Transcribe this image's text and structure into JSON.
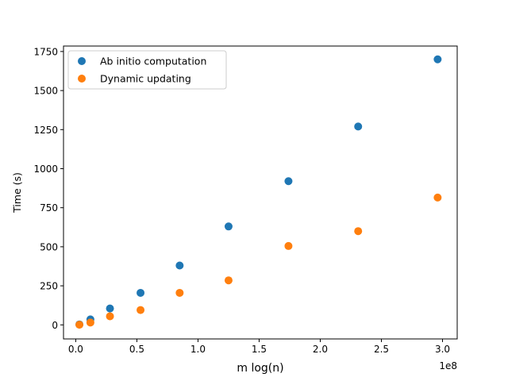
{
  "chart_data": {
    "type": "scatter",
    "title": "",
    "xlabel": "m log(n)",
    "ylabel": "Time (s)",
    "x_offset_label": "1e8",
    "xlim": [
      -0.1,
      3.12
    ],
    "ylim": [
      -90,
      1785
    ],
    "x_ticks": [
      0.0,
      0.5,
      1.0,
      1.5,
      2.0,
      2.5,
      3.0
    ],
    "x_tick_labels": [
      "0.0",
      "0.5",
      "1.0",
      "1.5",
      "2.0",
      "2.5",
      "3.0"
    ],
    "y_ticks": [
      0,
      250,
      500,
      750,
      1000,
      1250,
      1500,
      1750
    ],
    "y_tick_labels": [
      "0",
      "250",
      "500",
      "750",
      "1000",
      "1250",
      "1500",
      "1750"
    ],
    "grid": false,
    "legend_position": "top-left",
    "series": [
      {
        "name": "Ab initio computation",
        "color": "#1f77b4",
        "x": [
          0.03,
          0.12,
          0.28,
          0.53,
          0.85,
          1.25,
          1.74,
          2.31,
          2.96
        ],
        "y": [
          3,
          35,
          105,
          205,
          380,
          630,
          920,
          1270,
          1700
        ]
      },
      {
        "name": "Dynamic updating",
        "color": "#ff7f0e",
        "x": [
          0.03,
          0.12,
          0.28,
          0.53,
          0.85,
          1.25,
          1.74,
          2.31,
          2.96
        ],
        "y": [
          1,
          15,
          55,
          95,
          205,
          285,
          505,
          600,
          815
        ]
      }
    ]
  }
}
